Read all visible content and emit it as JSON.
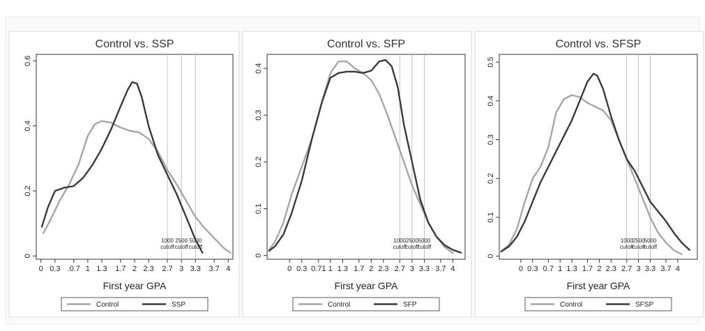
{
  "figure": {
    "colors": {
      "control": "#a6a6a6",
      "treatment": "#3a3a3a",
      "border": "#d9d9d9",
      "axis": "#333333"
    }
  },
  "chart_data": [
    {
      "type": "line",
      "title": "Control vs. SSP",
      "xlabel": "First year GPA",
      "ylabel": "",
      "xlim": [
        -0.1,
        4.1
      ],
      "ylim": [
        -0.01,
        0.62
      ],
      "x_ticks": [
        0,
        0.3,
        0.7,
        1,
        1.3,
        1.7,
        2,
        2.3,
        2.7,
        3,
        3.3,
        3.7,
        4
      ],
      "x_tick_labels": [
        "0",
        "0.3",
        ".0.7",
        "1",
        "1.3",
        "1.7",
        "2",
        "2.3",
        "2.7",
        "3",
        "3.3",
        "3.7",
        "4"
      ],
      "y_ticks": [
        0,
        0.2,
        0.4,
        0.6
      ],
      "y_tick_labels": [
        "0",
        "0.2",
        "0.4",
        "0.6"
      ],
      "cutoffs": [
        {
          "x": 2.7,
          "line1": "1000",
          "line2": "cutoff"
        },
        {
          "x": 3.0,
          "line1": "2500",
          "line2": "cutoff"
        },
        {
          "x": 3.3,
          "line1": "5000",
          "line2": "cutoff"
        }
      ],
      "legend": [
        "Control",
        "SSP"
      ],
      "series": [
        {
          "name": "Control",
          "x": [
            0.05,
            0.2,
            0.4,
            0.6,
            0.8,
            1.0,
            1.15,
            1.3,
            1.5,
            1.7,
            1.9,
            2.1,
            2.3,
            2.5,
            2.7,
            2.9,
            3.1,
            3.3,
            3.5,
            3.7,
            3.9,
            4.05
          ],
          "values": [
            0.07,
            0.11,
            0.17,
            0.22,
            0.28,
            0.37,
            0.405,
            0.415,
            0.41,
            0.395,
            0.385,
            0.38,
            0.36,
            0.32,
            0.265,
            0.22,
            0.17,
            0.12,
            0.085,
            0.055,
            0.025,
            0.01
          ]
        },
        {
          "name": "SSP",
          "x": [
            0.02,
            0.15,
            0.3,
            0.5,
            0.7,
            0.9,
            1.1,
            1.3,
            1.5,
            1.7,
            1.85,
            1.95,
            2.05,
            2.15,
            2.3,
            2.5,
            2.7,
            2.9,
            3.1,
            3.3,
            3.45
          ],
          "values": [
            0.09,
            0.15,
            0.2,
            0.21,
            0.215,
            0.24,
            0.28,
            0.33,
            0.39,
            0.46,
            0.51,
            0.535,
            0.53,
            0.49,
            0.4,
            0.31,
            0.25,
            0.19,
            0.12,
            0.05,
            0.01
          ]
        }
      ]
    },
    {
      "type": "line",
      "title": "Control vs. SFP",
      "xlabel": "First year GPA",
      "ylabel": "",
      "xlim": [
        -0.55,
        4.3
      ],
      "ylim": [
        -0.008,
        0.43
      ],
      "x_ticks": [
        0,
        0.3,
        0.71,
        1,
        1.3,
        1.7,
        2,
        2.3,
        2.7,
        3,
        3.3,
        3.7,
        4
      ],
      "x_tick_labels": [
        "0",
        "0.3",
        "0.71",
        "1",
        "1.3",
        "1.7",
        "2",
        "2.3",
        "2.7",
        "3",
        "3.3",
        "3.7",
        "4"
      ],
      "y_ticks": [
        0,
        0.1,
        0.2,
        0.3,
        0.4
      ],
      "y_tick_labels": [
        "0",
        "0.1",
        "0.2",
        "0.3",
        "0.4"
      ],
      "cutoffs": [
        {
          "x": 2.7,
          "line1": "1000",
          "line2": "cutoff"
        },
        {
          "x": 3.0,
          "line1": "2500",
          "line2": "cutoff"
        },
        {
          "x": 3.3,
          "line1": "5000",
          "line2": "cutoff"
        }
      ],
      "legend": [
        "Control",
        "SFP"
      ],
      "series": [
        {
          "name": "Control",
          "x": [
            -0.5,
            -0.35,
            -0.15,
            0.05,
            0.3,
            0.55,
            0.8,
            1.0,
            1.2,
            1.4,
            1.6,
            1.8,
            2.0,
            2.2,
            2.4,
            2.6,
            2.8,
            3.0,
            3.2,
            3.4,
            3.6,
            3.8,
            4.0
          ],
          "values": [
            0.012,
            0.03,
            0.07,
            0.13,
            0.19,
            0.25,
            0.33,
            0.39,
            0.415,
            0.415,
            0.4,
            0.39,
            0.375,
            0.345,
            0.3,
            0.25,
            0.2,
            0.15,
            0.11,
            0.07,
            0.04,
            0.018,
            0.005
          ]
        },
        {
          "name": "SFP",
          "x": [
            -0.5,
            -0.35,
            -0.15,
            0.05,
            0.3,
            0.55,
            0.8,
            1.0,
            1.2,
            1.4,
            1.6,
            1.8,
            2.0,
            2.2,
            2.35,
            2.5,
            2.65,
            2.8,
            3.0,
            3.2,
            3.4,
            3.6,
            3.8,
            4.0,
            4.2
          ],
          "values": [
            0.01,
            0.02,
            0.045,
            0.09,
            0.16,
            0.25,
            0.33,
            0.38,
            0.39,
            0.393,
            0.393,
            0.39,
            0.395,
            0.415,
            0.418,
            0.405,
            0.36,
            0.28,
            0.2,
            0.12,
            0.07,
            0.04,
            0.022,
            0.012,
            0.006
          ]
        }
      ]
    },
    {
      "type": "line",
      "title": "Control vs. SFSP",
      "xlabel": "First year GPA",
      "ylabel": "",
      "xlim": [
        -0.55,
        4.5
      ],
      "ylim": [
        -0.008,
        0.52
      ],
      "x_ticks": [
        0,
        0.3,
        0.7,
        1,
        1.3,
        1.7,
        2,
        2.3,
        2.7,
        3,
        3.3,
        3.7,
        4
      ],
      "x_tick_labels": [
        "0",
        "0.3",
        "0.7",
        "1",
        "1.3",
        "1.7",
        "2",
        "2.3",
        "2.7",
        "3",
        "3.3",
        "3.7",
        "4"
      ],
      "y_ticks": [
        0,
        0.1,
        0.2,
        0.3,
        0.4,
        0.5
      ],
      "y_tick_labels": [
        "0",
        "0.1",
        "0.2",
        "0.3",
        "0.4",
        "0.5"
      ],
      "cutoffs": [
        {
          "x": 2.7,
          "line1": "1000",
          "line2": "cutoff"
        },
        {
          "x": 3.0,
          "line1": "2500",
          "line2": "cutoff"
        },
        {
          "x": 3.3,
          "line1": "5000",
          "line2": "cutoff"
        }
      ],
      "legend": [
        "Control",
        "SFSP"
      ],
      "series": [
        {
          "name": "Control",
          "x": [
            -0.5,
            -0.3,
            -0.1,
            0.1,
            0.3,
            0.5,
            0.7,
            0.9,
            1.1,
            1.3,
            1.5,
            1.7,
            1.9,
            2.1,
            2.3,
            2.5,
            2.7,
            2.9,
            3.1,
            3.3,
            3.5,
            3.7,
            3.9,
            4.1
          ],
          "values": [
            0.012,
            0.03,
            0.07,
            0.14,
            0.2,
            0.23,
            0.28,
            0.37,
            0.405,
            0.415,
            0.41,
            0.395,
            0.385,
            0.375,
            0.35,
            0.3,
            0.25,
            0.2,
            0.15,
            0.1,
            0.06,
            0.035,
            0.015,
            0.005
          ]
        },
        {
          "name": "SFSP",
          "x": [
            -0.5,
            -0.3,
            -0.1,
            0.1,
            0.3,
            0.5,
            0.7,
            0.9,
            1.1,
            1.3,
            1.5,
            1.7,
            1.85,
            1.95,
            2.1,
            2.3,
            2.5,
            2.7,
            2.9,
            3.1,
            3.3,
            3.5,
            3.7,
            3.9,
            4.1,
            4.3
          ],
          "values": [
            0.012,
            0.025,
            0.05,
            0.09,
            0.14,
            0.19,
            0.23,
            0.27,
            0.31,
            0.35,
            0.4,
            0.45,
            0.47,
            0.465,
            0.43,
            0.36,
            0.3,
            0.25,
            0.22,
            0.18,
            0.14,
            0.115,
            0.09,
            0.06,
            0.035,
            0.016
          ]
        }
      ]
    }
  ]
}
